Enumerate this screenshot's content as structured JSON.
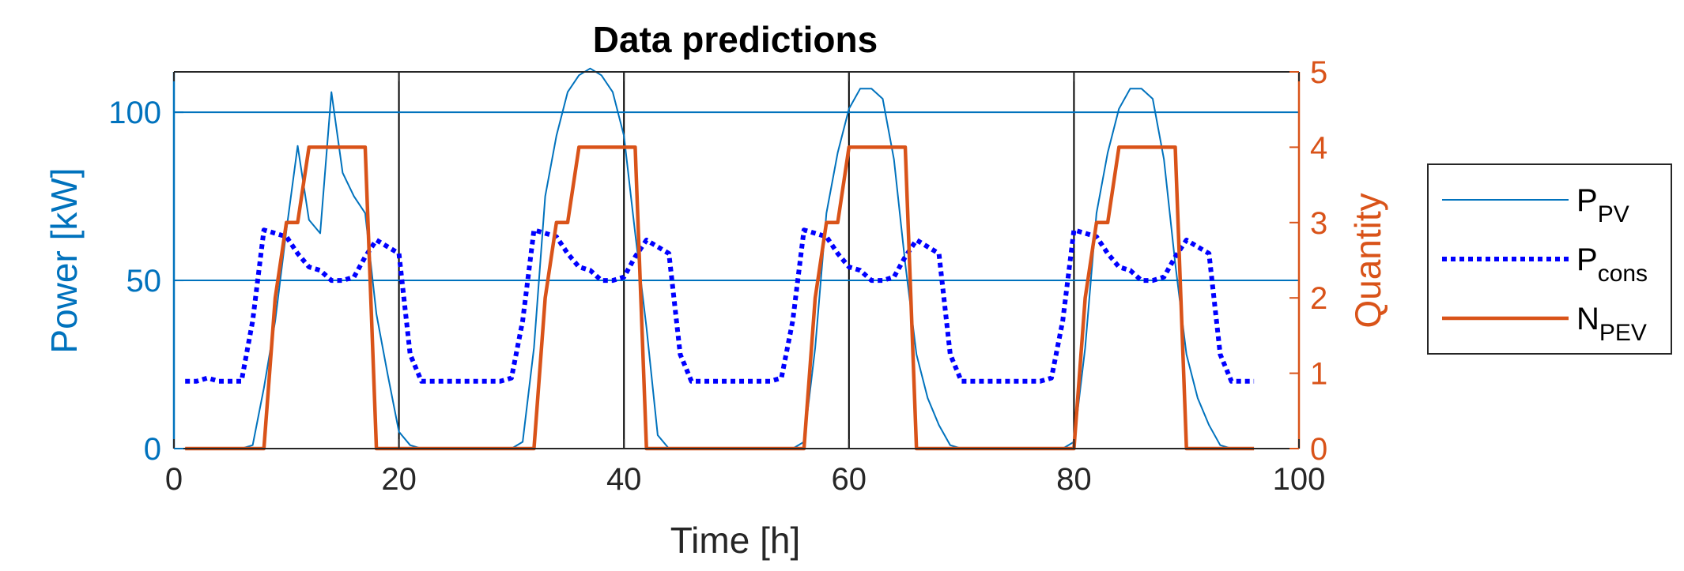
{
  "chart_data": {
    "type": "line",
    "title": "Data predictions",
    "xlabel": "Time [h]",
    "ylabel_left": "Power [kW]",
    "ylabel_right": "Quantity",
    "xlim": [
      0,
      100
    ],
    "ylim_left": [
      0,
      112
    ],
    "ylim_right": [
      0,
      5
    ],
    "x_ticks": [
      0,
      20,
      40,
      60,
      80,
      100
    ],
    "y_ticks_left": [
      0,
      50,
      100
    ],
    "y_ticks_right": [
      0,
      1,
      2,
      3,
      4,
      5
    ],
    "grid": true,
    "legend_position": "outside-right",
    "colors": {
      "left_axis": "#0072BD",
      "right_axis": "#D95319",
      "pv": "#0072BD",
      "cons": "#0000FF",
      "pev": "#D95319",
      "grid": "#000000"
    },
    "legend": [
      {
        "key": "pv",
        "base": "P",
        "sub": "PV"
      },
      {
        "key": "cons",
        "base": "P",
        "sub": "cons"
      },
      {
        "key": "pev",
        "base": "N",
        "sub": "PEV"
      }
    ],
    "series": [
      {
        "key": "pv",
        "axis": "left",
        "style": "solid-thin",
        "x": [
          1,
          2,
          3,
          4,
          5,
          6,
          7,
          8,
          9,
          10,
          11,
          12,
          13,
          14,
          15,
          16,
          17,
          18,
          19,
          20,
          21,
          22,
          23,
          24,
          25,
          26,
          27,
          28,
          29,
          30,
          31,
          32,
          33,
          34,
          35,
          36,
          37,
          38,
          39,
          40,
          41,
          42,
          43,
          44,
          45,
          46,
          47,
          48,
          49,
          50,
          51,
          52,
          53,
          54,
          55,
          56,
          57,
          58,
          59,
          60,
          61,
          62,
          63,
          64,
          65,
          66,
          67,
          68,
          69,
          70,
          71,
          72,
          73,
          74,
          75,
          76,
          77,
          78,
          79,
          80,
          81,
          82,
          83,
          84,
          85,
          86,
          87,
          88,
          89,
          90,
          91,
          92,
          93,
          94,
          95,
          96
        ],
        "y": [
          0,
          0,
          0,
          0,
          0,
          0,
          1,
          18,
          38,
          65,
          90,
          68,
          64,
          106,
          82,
          75,
          70,
          40,
          22,
          5,
          1,
          0,
          0,
          0,
          0,
          0,
          0,
          0,
          0,
          0,
          2,
          30,
          75,
          93,
          106,
          111,
          113,
          111,
          106,
          93,
          64,
          36,
          4,
          0,
          0,
          0,
          0,
          0,
          0,
          0,
          0,
          0,
          0,
          0,
          0,
          2,
          30,
          70,
          88,
          101,
          107,
          107,
          104,
          86,
          55,
          28,
          15,
          7,
          1,
          0,
          0,
          0,
          0,
          0,
          0,
          0,
          0,
          0,
          0,
          2,
          30,
          70,
          88,
          101,
          107,
          107,
          104,
          86,
          55,
          28,
          15,
          7,
          1,
          0,
          0,
          0
        ]
      },
      {
        "key": "cons",
        "axis": "left",
        "style": "dotted-thick",
        "x": [
          1,
          2,
          3,
          4,
          5,
          6,
          7,
          8,
          9,
          10,
          11,
          12,
          13,
          14,
          15,
          16,
          17,
          18,
          19,
          20,
          21,
          22,
          23,
          24,
          25,
          26,
          27,
          28,
          29,
          30,
          31,
          32,
          33,
          34,
          35,
          36,
          37,
          38,
          39,
          40,
          41,
          42,
          43,
          44,
          45,
          46,
          47,
          48,
          49,
          50,
          51,
          52,
          53,
          54,
          55,
          56,
          57,
          58,
          59,
          60,
          61,
          62,
          63,
          64,
          65,
          66,
          67,
          68,
          69,
          70,
          71,
          72,
          73,
          74,
          75,
          76,
          77,
          78,
          79,
          80,
          81,
          82,
          83,
          84,
          85,
          86,
          87,
          88,
          89,
          90,
          91,
          92,
          93,
          94,
          95,
          96
        ],
        "y": [
          20,
          20,
          21,
          20,
          20,
          20,
          38,
          65,
          64,
          63,
          58,
          54,
          53,
          50,
          50,
          51,
          57,
          62,
          60,
          58,
          28,
          20,
          20,
          20,
          20,
          20,
          20,
          20,
          20,
          21,
          38,
          65,
          64,
          63,
          58,
          54,
          53,
          50,
          50,
          51,
          57,
          62,
          60,
          58,
          28,
          20,
          20,
          20,
          20,
          20,
          20,
          20,
          20,
          21,
          38,
          65,
          64,
          63,
          58,
          54,
          53,
          50,
          50,
          51,
          57,
          62,
          60,
          58,
          28,
          20,
          20,
          20,
          20,
          20,
          20,
          20,
          20,
          21,
          38,
          65,
          64,
          63,
          58,
          54,
          53,
          50,
          50,
          51,
          57,
          62,
          60,
          58,
          28,
          20,
          20,
          20
        ]
      },
      {
        "key": "pev",
        "axis": "right",
        "style": "solid-thick",
        "x": [
          1,
          2,
          3,
          4,
          5,
          6,
          7,
          8,
          9,
          10,
          11,
          12,
          13,
          14,
          15,
          16,
          17,
          18,
          19,
          20,
          21,
          22,
          23,
          24,
          25,
          26,
          27,
          28,
          29,
          30,
          31,
          32,
          33,
          34,
          35,
          36,
          37,
          38,
          39,
          40,
          41,
          42,
          43,
          44,
          45,
          46,
          47,
          48,
          49,
          50,
          51,
          52,
          53,
          54,
          55,
          56,
          57,
          58,
          59,
          60,
          61,
          62,
          63,
          64,
          65,
          66,
          67,
          68,
          69,
          70,
          71,
          72,
          73,
          74,
          75,
          76,
          77,
          78,
          79,
          80,
          81,
          82,
          83,
          84,
          85,
          86,
          87,
          88,
          89,
          90,
          91,
          92,
          93,
          94,
          95,
          96
        ],
        "y": [
          0,
          0,
          0,
          0,
          0,
          0,
          0,
          0,
          2,
          3,
          3,
          4,
          4,
          4,
          4,
          4,
          4,
          0,
          0,
          0,
          0,
          0,
          0,
          0,
          0,
          0,
          0,
          0,
          0,
          0,
          0,
          0,
          2,
          3,
          3,
          4,
          4,
          4,
          4,
          4,
          4,
          0,
          0,
          0,
          0,
          0,
          0,
          0,
          0,
          0,
          0,
          0,
          0,
          0,
          0,
          0,
          2,
          3,
          3,
          4,
          4,
          4,
          4,
          4,
          4,
          0,
          0,
          0,
          0,
          0,
          0,
          0,
          0,
          0,
          0,
          0,
          0,
          0,
          0,
          0,
          2,
          3,
          3,
          4,
          4,
          4,
          4,
          4,
          4,
          0,
          0,
          0,
          0,
          0,
          0,
          0
        ]
      }
    ]
  }
}
